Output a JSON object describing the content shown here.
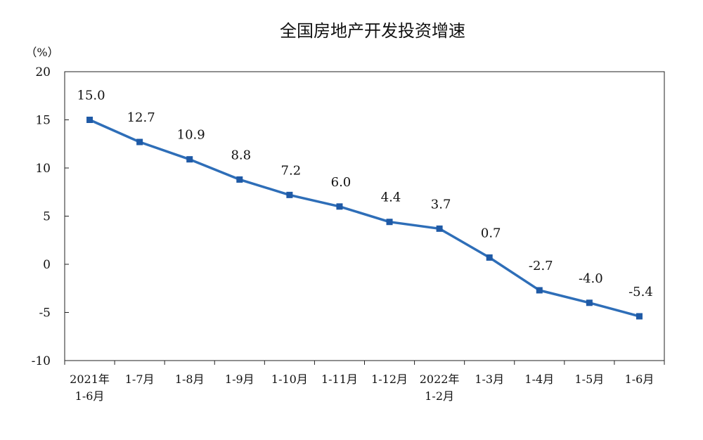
{
  "chart_data": {
    "type": "line",
    "title": "全国房地产开发投资增速",
    "unit_label": "（%）",
    "ylim": [
      -10,
      20
    ],
    "yticks": [
      "20",
      "15",
      "10",
      "5",
      "0",
      "-5",
      "-10"
    ],
    "categories": [
      [
        "2021年",
        "1-6月"
      ],
      [
        "1-7月"
      ],
      [
        "1-8月"
      ],
      [
        "1-9月"
      ],
      [
        "1-10月"
      ],
      [
        "1-11月"
      ],
      [
        "1-12月"
      ],
      [
        "2022年",
        "1-2月"
      ],
      [
        "1-3月"
      ],
      [
        "1-4月"
      ],
      [
        "1-5月"
      ],
      [
        "1-6月"
      ]
    ],
    "values": [
      15.0,
      12.7,
      10.9,
      8.8,
      7.2,
      6.0,
      4.4,
      3.7,
      0.7,
      -2.7,
      -4.0,
      -5.4
    ],
    "data_labels": [
      "15.0",
      "12.7",
      "10.9",
      "8.8",
      "7.2",
      "6.0",
      "4.4",
      "3.7",
      "0.7",
      "-2.7",
      "-4.0",
      "-5.4"
    ],
    "grid": false,
    "legend": "none",
    "line_color": "#2e6eb8",
    "marker_color": "#1f5aa6"
  }
}
